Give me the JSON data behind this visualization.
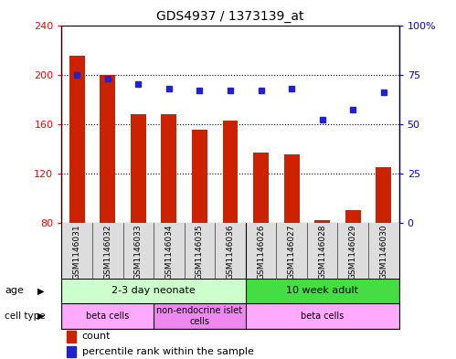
{
  "title": "GDS4937 / 1373139_at",
  "samples": [
    "GSM1146031",
    "GSM1146032",
    "GSM1146033",
    "GSM1146034",
    "GSM1146035",
    "GSM1146036",
    "GSM1146026",
    "GSM1146027",
    "GSM1146028",
    "GSM1146029",
    "GSM1146030"
  ],
  "counts": [
    215,
    200,
    168,
    168,
    155,
    163,
    137,
    135,
    82,
    90,
    125
  ],
  "percentiles": [
    75,
    73,
    70,
    68,
    67,
    67,
    67,
    68,
    52,
    57,
    66
  ],
  "ylim_left": [
    80,
    240
  ],
  "ylim_right": [
    0,
    100
  ],
  "yticks_left": [
    80,
    120,
    160,
    200,
    240
  ],
  "yticks_right": [
    0,
    25,
    50,
    75,
    100
  ],
  "ytick_labels_right": [
    "0",
    "25",
    "50",
    "75",
    "100%"
  ],
  "bar_color": "#cc2200",
  "dot_color": "#2222cc",
  "bar_width": 0.5,
  "age_groups": [
    {
      "label": "2-3 day neonate",
      "start": 0,
      "end": 6,
      "color": "#ccffcc"
    },
    {
      "label": "10 week adult",
      "start": 6,
      "end": 11,
      "color": "#44dd44"
    }
  ],
  "cell_type_groups": [
    {
      "label": "beta cells",
      "start": 0,
      "end": 3,
      "color": "#ffaaff"
    },
    {
      "label": "non-endocrine islet\ncells",
      "start": 3,
      "end": 6,
      "color": "#ee88ee"
    },
    {
      "label": "beta cells",
      "start": 6,
      "end": 11,
      "color": "#ffaaff"
    }
  ],
  "legend_count_color": "#cc2200",
  "legend_dot_color": "#2222cc",
  "sample_bg": "#dddddd",
  "group_divider": 5.5,
  "n_samples": 11
}
